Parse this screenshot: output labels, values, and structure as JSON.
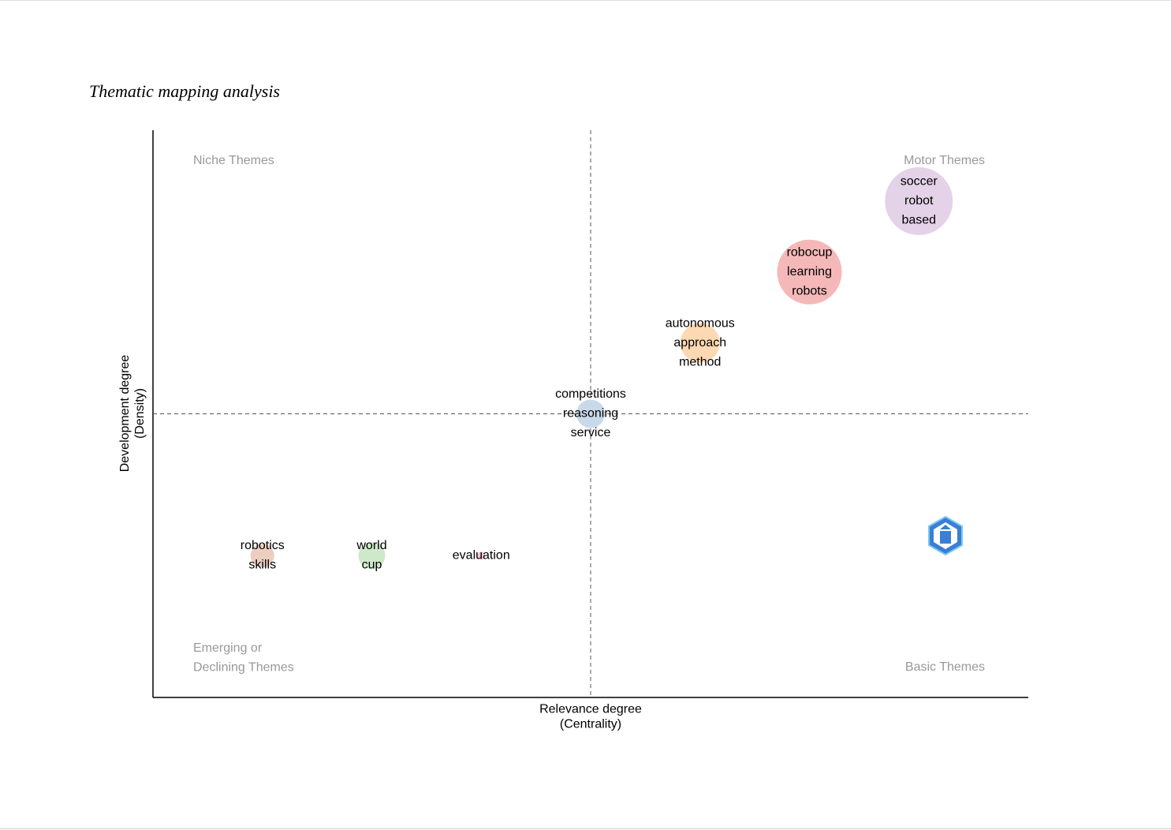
{
  "chart_data": {
    "type": "bubble",
    "title": "Thematic mapping analysis",
    "x_label": [
      "Relevance degree",
      "(Centrality)"
    ],
    "y_label": [
      "Development degree",
      "(Density)"
    ],
    "quadrants": {
      "top_left": [
        "Niche Themes"
      ],
      "top_right": [
        "Motor Themes"
      ],
      "bottom_left": [
        "Emerging or",
        "Declining Themes"
      ],
      "bottom_right": [
        "Basic Themes"
      ]
    },
    "x": [
      1,
      2,
      3,
      4,
      5,
      6,
      7
    ],
    "values": [
      2,
      2,
      2,
      4,
      5,
      6,
      7
    ],
    "sizes": [
      15,
      17,
      5,
      18,
      25,
      41,
      43
    ],
    "colors": [
      "#ebcfc0",
      "#cfe8cb",
      "#f8c4d4",
      "#c8d9ea",
      "#fdd9b3",
      "#f5b8b8",
      "#e3d2e8"
    ],
    "labels": [
      [
        "robotics",
        "skills"
      ],
      [
        "world",
        "cup"
      ],
      [
        "evaluation"
      ],
      [
        "competitions",
        "reasoning",
        "service"
      ],
      [
        "autonomous",
        "approach",
        "method"
      ],
      [
        "robocup",
        "learning",
        "robots"
      ],
      [
        "soccer",
        "robot",
        "based"
      ]
    ],
    "xlim": [
      0,
      8
    ],
    "ylim": [
      0,
      8
    ],
    "xline": 4,
    "yline": 4
  }
}
